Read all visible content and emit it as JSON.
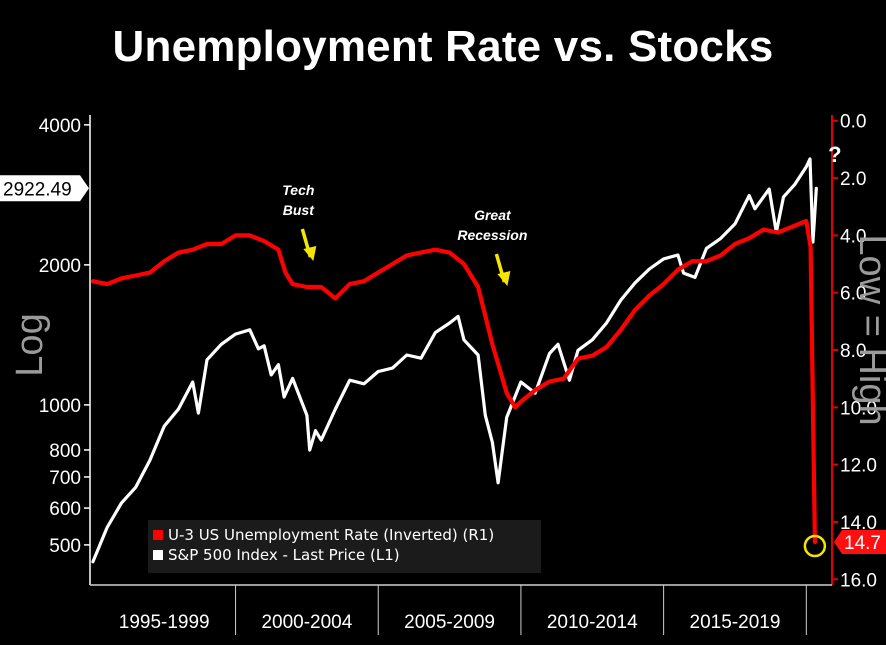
{
  "chart_data": {
    "type": "line",
    "title": "Unemployment Rate vs. Stocks",
    "left_axis": {
      "label": "Log",
      "scale": "log",
      "range": [
        410,
        4200
      ],
      "ticks": [
        {
          "value": 4000,
          "label": "4000"
        },
        {
          "value": 2000,
          "label": "2000"
        },
        {
          "value": 1000,
          "label": "1000"
        },
        {
          "value": 800,
          "label": "800"
        },
        {
          "value": 700,
          "label": "700"
        },
        {
          "value": 600,
          "label": "600"
        },
        {
          "value": 500,
          "label": "500"
        }
      ],
      "last_value_label": "2922.49",
      "last_value": 2922.49
    },
    "right_axis": {
      "label": "Low = High",
      "inverted": true,
      "range": [
        -0.2,
        16.2
      ],
      "ticks": [
        {
          "value": 0,
          "label": "0.0"
        },
        {
          "value": 2,
          "label": "2.0"
        },
        {
          "value": 4,
          "label": "4.0"
        },
        {
          "value": 6,
          "label": "6.0"
        },
        {
          "value": 8,
          "label": "8.0"
        },
        {
          "value": 10,
          "label": "10.0"
        },
        {
          "value": 12,
          "label": "12.0"
        },
        {
          "value": 14,
          "label": "14.0"
        },
        {
          "value": 16,
          "label": "16.0"
        }
      ],
      "last_value_label": "14.7",
      "last_value": 14.7
    },
    "x_axis": {
      "range": [
        1994.9,
        2020.9
      ],
      "period_labels": [
        "1995-1999",
        "2000-2004",
        "2005-2009",
        "2010-2014",
        "2015-2019"
      ],
      "period_bounds": [
        1995,
        2000,
        2005,
        2010,
        2015,
        2020
      ]
    },
    "series": [
      {
        "name": "U-3 US Unemployment Rate (Inverted) (R1)",
        "axis": "right",
        "color": "#ff0000",
        "points": [
          [
            1995.0,
            5.6
          ],
          [
            1995.5,
            5.7
          ],
          [
            1996.0,
            5.5
          ],
          [
            1996.5,
            5.4
          ],
          [
            1997.0,
            5.3
          ],
          [
            1997.5,
            4.9
          ],
          [
            1998.0,
            4.6
          ],
          [
            1998.5,
            4.5
          ],
          [
            1999.0,
            4.3
          ],
          [
            1999.5,
            4.3
          ],
          [
            2000.0,
            4.0
          ],
          [
            2000.5,
            4.0
          ],
          [
            2001.0,
            4.2
          ],
          [
            2001.5,
            4.5
          ],
          [
            2001.75,
            5.3
          ],
          [
            2002.0,
            5.7
          ],
          [
            2002.5,
            5.8
          ],
          [
            2003.0,
            5.8
          ],
          [
            2003.5,
            6.2
          ],
          [
            2004.0,
            5.7
          ],
          [
            2004.5,
            5.6
          ],
          [
            2005.0,
            5.3
          ],
          [
            2005.5,
            5.0
          ],
          [
            2006.0,
            4.7
          ],
          [
            2006.5,
            4.6
          ],
          [
            2007.0,
            4.5
          ],
          [
            2007.5,
            4.6
          ],
          [
            2008.0,
            5.0
          ],
          [
            2008.5,
            5.8
          ],
          [
            2009.0,
            7.8
          ],
          [
            2009.5,
            9.5
          ],
          [
            2009.8,
            10.0
          ],
          [
            2010.0,
            9.8
          ],
          [
            2010.5,
            9.4
          ],
          [
            2011.0,
            9.1
          ],
          [
            2011.5,
            9.0
          ],
          [
            2012.0,
            8.3
          ],
          [
            2012.5,
            8.2
          ],
          [
            2013.0,
            7.9
          ],
          [
            2013.5,
            7.3
          ],
          [
            2014.0,
            6.6
          ],
          [
            2014.5,
            6.1
          ],
          [
            2015.0,
            5.7
          ],
          [
            2015.5,
            5.2
          ],
          [
            2016.0,
            4.9
          ],
          [
            2016.5,
            4.9
          ],
          [
            2017.0,
            4.7
          ],
          [
            2017.5,
            4.3
          ],
          [
            2018.0,
            4.1
          ],
          [
            2018.5,
            3.8
          ],
          [
            2019.0,
            3.9
          ],
          [
            2019.5,
            3.7
          ],
          [
            2020.0,
            3.5
          ],
          [
            2020.15,
            4.4
          ],
          [
            2020.3,
            14.7
          ]
        ]
      },
      {
        "name": "S&P 500 Index - Last Price (L1)",
        "axis": "left",
        "color": "#ffffff",
        "points": [
          [
            1995.0,
            460
          ],
          [
            1995.5,
            545
          ],
          [
            1996.0,
            615
          ],
          [
            1996.5,
            665
          ],
          [
            1997.0,
            760
          ],
          [
            1997.5,
            900
          ],
          [
            1998.0,
            980
          ],
          [
            1998.5,
            1120
          ],
          [
            1998.7,
            960
          ],
          [
            1999.0,
            1250
          ],
          [
            1999.5,
            1350
          ],
          [
            2000.0,
            1420
          ],
          [
            2000.5,
            1450
          ],
          [
            2000.8,
            1320
          ],
          [
            2001.0,
            1340
          ],
          [
            2001.25,
            1160
          ],
          [
            2001.5,
            1220
          ],
          [
            2001.7,
            1040
          ],
          [
            2002.0,
            1140
          ],
          [
            2002.5,
            950
          ],
          [
            2002.6,
            800
          ],
          [
            2002.8,
            880
          ],
          [
            2003.0,
            840
          ],
          [
            2003.5,
            980
          ],
          [
            2004.0,
            1130
          ],
          [
            2004.5,
            1110
          ],
          [
            2005.0,
            1180
          ],
          [
            2005.5,
            1200
          ],
          [
            2006.0,
            1280
          ],
          [
            2006.5,
            1260
          ],
          [
            2007.0,
            1430
          ],
          [
            2007.5,
            1500
          ],
          [
            2007.8,
            1550
          ],
          [
            2008.0,
            1380
          ],
          [
            2008.5,
            1280
          ],
          [
            2008.75,
            950
          ],
          [
            2009.0,
            830
          ],
          [
            2009.2,
            680
          ],
          [
            2009.5,
            940
          ],
          [
            2010.0,
            1120
          ],
          [
            2010.5,
            1060
          ],
          [
            2011.0,
            1290
          ],
          [
            2011.3,
            1350
          ],
          [
            2011.7,
            1130
          ],
          [
            2012.0,
            1310
          ],
          [
            2012.5,
            1380
          ],
          [
            2013.0,
            1500
          ],
          [
            2013.5,
            1680
          ],
          [
            2014.0,
            1830
          ],
          [
            2014.5,
            1960
          ],
          [
            2015.0,
            2060
          ],
          [
            2015.5,
            2100
          ],
          [
            2015.7,
            1920
          ],
          [
            2016.1,
            1880
          ],
          [
            2016.5,
            2170
          ],
          [
            2017.0,
            2280
          ],
          [
            2017.5,
            2450
          ],
          [
            2018.0,
            2820
          ],
          [
            2018.2,
            2640
          ],
          [
            2018.7,
            2910
          ],
          [
            2018.95,
            2350
          ],
          [
            2019.2,
            2800
          ],
          [
            2019.6,
            2980
          ],
          [
            2020.0,
            3250
          ],
          [
            2020.13,
            3380
          ],
          [
            2020.23,
            2240
          ],
          [
            2020.28,
            2480
          ],
          [
            2020.35,
            2922.49
          ]
        ]
      }
    ],
    "annotations": [
      {
        "lines": [
          "Tech",
          "Bust"
        ],
        "x": 2002.2
      },
      {
        "lines": [
          "Great",
          "Recession"
        ],
        "x": 2009.0
      },
      {
        "lines": [
          "?"
        ],
        "x": 2021.0
      }
    ]
  }
}
